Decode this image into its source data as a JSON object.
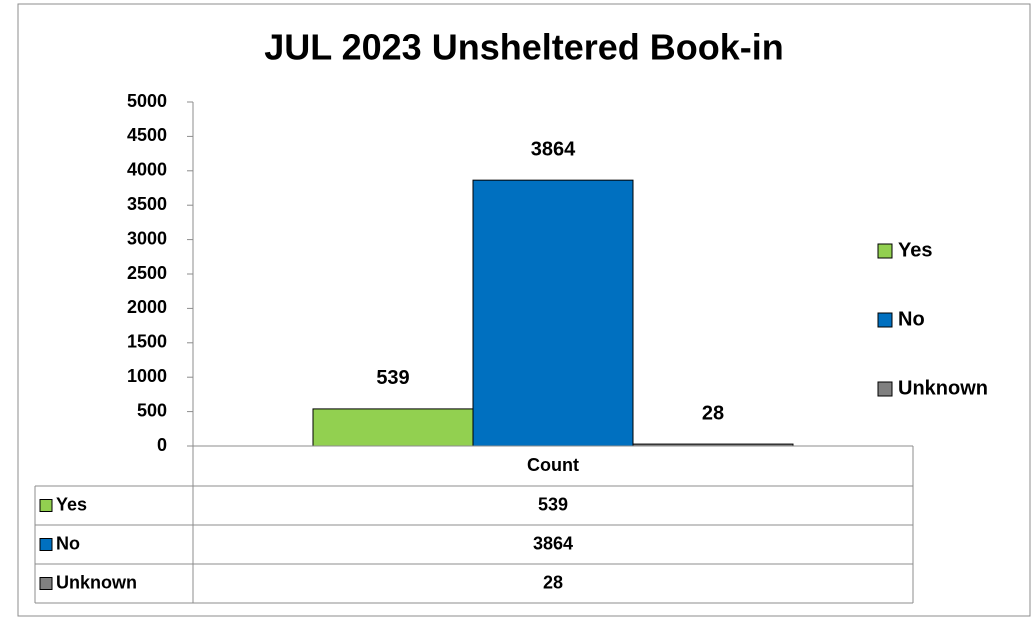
{
  "chart_data": {
    "type": "bar",
    "title": "JUL 2023 Unsheltered Book-in",
    "categories": [
      "Count"
    ],
    "series": [
      {
        "name": "Yes",
        "color": "#92d050",
        "values": [
          539
        ]
      },
      {
        "name": "No",
        "color": "#0070c0",
        "values": [
          3864
        ]
      },
      {
        "name": "Unknown",
        "color": "#808080",
        "values": [
          28
        ]
      }
    ],
    "ylim": [
      0,
      5000
    ],
    "yticks": [
      0,
      500,
      1000,
      1500,
      2000,
      2500,
      3000,
      3500,
      4000,
      4500,
      5000
    ],
    "grid": false,
    "legend": "right",
    "data_table": true
  }
}
